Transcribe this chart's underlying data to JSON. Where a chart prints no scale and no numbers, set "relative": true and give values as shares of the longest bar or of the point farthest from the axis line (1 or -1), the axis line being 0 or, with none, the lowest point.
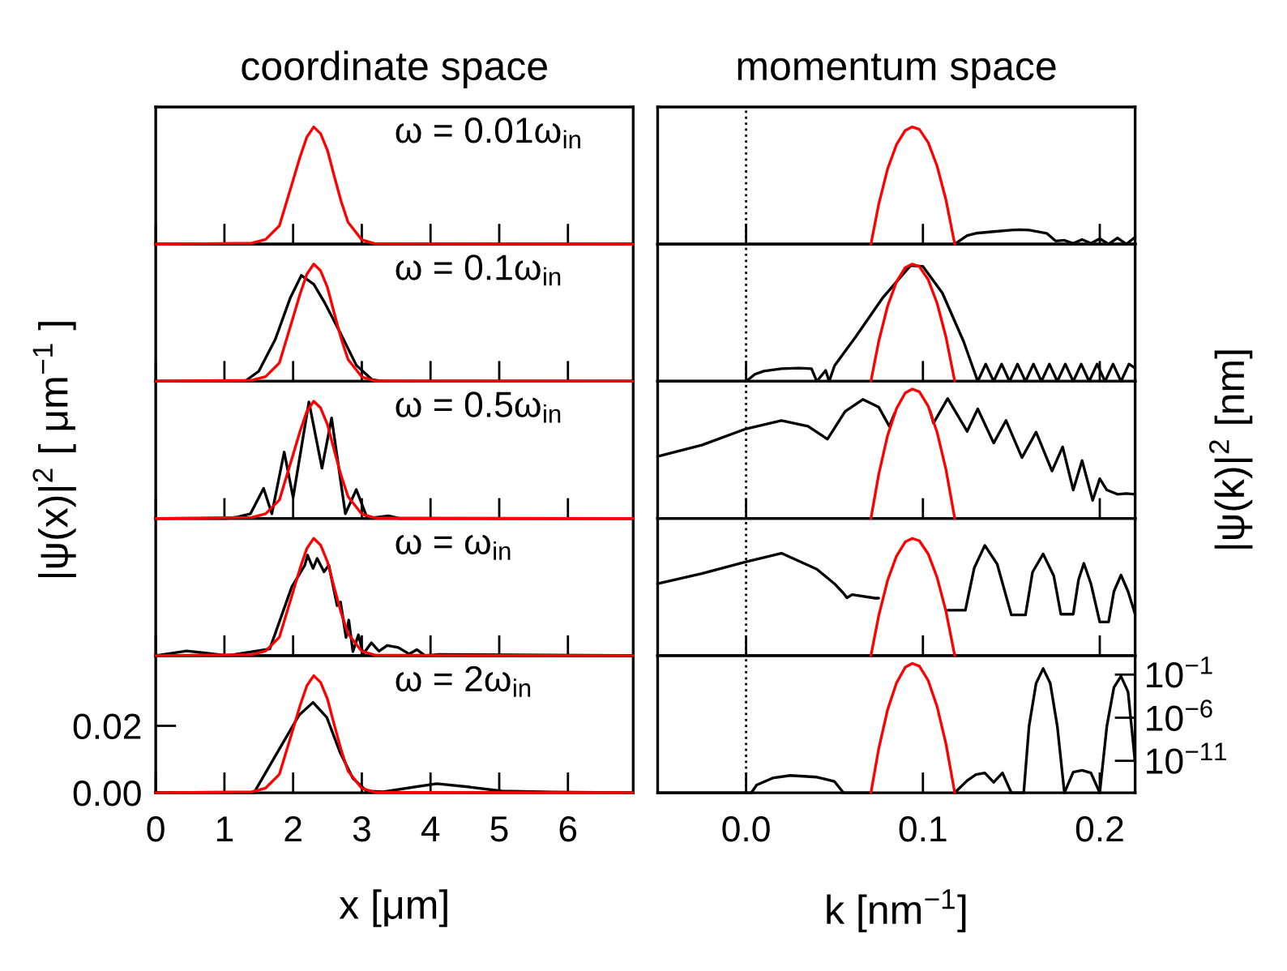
{
  "chart_data": [
    {
      "type": "line",
      "title": "coordinate space",
      "annotations": [
        "ω = 0.01ω$_{in}$"
      ],
      "relative": true,
      "xlim": [
        0,
        6.95
      ],
      "xticks": [
        0,
        1,
        2,
        3,
        4,
        5,
        6
      ],
      "tick_labels": false,
      "series": [
        {
          "color": "#ff0000",
          "x": [
            0,
            1.4,
            1.6,
            1.8,
            2.0,
            2.1,
            2.2,
            2.3,
            2.4,
            2.5,
            2.6,
            2.7,
            2.8,
            3.0,
            3.2,
            6.95
          ],
          "values": [
            0,
            0.0086,
            0.04,
            0.157,
            0.546,
            0.743,
            0.914,
            1,
            0.943,
            0.8,
            0.577,
            0.363,
            0.186,
            0.037,
            0.003,
            0
          ]
        }
      ]
    },
    {
      "type": "line",
      "title": "momentum space",
      "relative": true,
      "xlim": [
        -0.05,
        0.22
      ],
      "xticks": [
        0,
        0.1,
        0.2
      ],
      "tick_labels": false,
      "ref_lines": [
        {
          "axis": "x",
          "value": 0,
          "color": "#000000",
          "line_style": "dotted"
        }
      ],
      "series": [
        {
          "color": "#000000",
          "x": [
            0.118,
            0.125,
            0.13,
            0.14,
            0.15,
            0.155,
            0.16,
            0.17,
            0.175,
            0.18,
            0.185,
            0.19,
            0.195,
            0.2,
            0.205,
            0.21,
            0.215,
            0.22
          ],
          "values": [
            0,
            0.073,
            0.093,
            0.107,
            0.12,
            0.123,
            0.12,
            0.093,
            0.027,
            0.033,
            0.007,
            0.04,
            0.007,
            0.047,
            0,
            0.053,
            0,
            0.06
          ]
        },
        {
          "color": "#ff0000",
          "x": [
            0.0706,
            0.075,
            0.08,
            0.085,
            0.09,
            0.094,
            0.098,
            0.103,
            0.108,
            0.113,
            0.118
          ],
          "values": [
            0,
            0.34,
            0.64,
            0.847,
            0.97,
            1,
            0.979,
            0.867,
            0.667,
            0.38,
            0
          ]
        }
      ]
    },
    {
      "type": "line",
      "annotations": [
        "ω = 0.1ω$_{in}$"
      ],
      "relative": true,
      "xlim": [
        0,
        6.95
      ],
      "xticks": [
        0,
        1,
        2,
        3,
        4,
        5,
        6
      ],
      "tick_labels": false,
      "series": [
        {
          "color": "#000000",
          "x": [
            0,
            1.3,
            1.5,
            1.74,
            1.96,
            2.12,
            2.3,
            2.45,
            2.69,
            2.92,
            3.15,
            3.3,
            6.95
          ],
          "values": [
            0,
            0,
            0.086,
            0.357,
            0.714,
            0.903,
            0.829,
            0.68,
            0.409,
            0.137,
            0.014,
            0,
            0
          ]
        },
        {
          "color": "#ff0000",
          "x": [
            0,
            1.4,
            1.6,
            1.8,
            2.0,
            2.1,
            2.2,
            2.3,
            2.4,
            2.5,
            2.6,
            2.7,
            2.8,
            3.0,
            3.2,
            6.95
          ],
          "values": [
            0,
            0.0086,
            0.04,
            0.157,
            0.546,
            0.743,
            0.914,
            1,
            0.943,
            0.8,
            0.577,
            0.363,
            0.186,
            0.037,
            0.003,
            0
          ]
        }
      ]
    },
    {
      "type": "line",
      "relative": true,
      "xlim": [
        -0.05,
        0.22
      ],
      "xticks": [
        0,
        0.1,
        0.2
      ],
      "tick_labels": false,
      "ref_lines": [
        {
          "axis": "x",
          "value": 0,
          "color": "#000000",
          "line_style": "dotted"
        }
      ],
      "series": [
        {
          "color": "#000000",
          "x": [
            -0.05,
            0.0,
            0.005,
            0.01,
            0.02,
            0.03,
            0.037,
            0.04,
            0.045,
            0.047,
            0.05,
            0.062,
            0.077,
            0.093,
            0.1,
            0.111,
            0.123,
            0.131,
            0.1355,
            0.14,
            0.1445,
            0.149,
            0.1535,
            0.158,
            0.1625,
            0.167,
            0.1715,
            0.176,
            0.1805,
            0.185,
            0.1895,
            0.194,
            0.1985,
            0.203,
            0.2075,
            0.212,
            0.2165,
            0.22
          ],
          "values": [
            0,
            0,
            0.06,
            0.087,
            0.107,
            0.113,
            0.107,
            0,
            0.093,
            0,
            0.133,
            0.38,
            0.707,
            0.987,
            0.98,
            0.753,
            0.34,
            0,
            0.147,
            0,
            0.147,
            0,
            0.147,
            0,
            0.147,
            0,
            0.147,
            0,
            0.147,
            0,
            0.147,
            0,
            0.147,
            0,
            0.147,
            0,
            0.147,
            0.113
          ]
        },
        {
          "color": "#ff0000",
          "x": [
            0.0706,
            0.075,
            0.08,
            0.085,
            0.09,
            0.094,
            0.098,
            0.103,
            0.108,
            0.113,
            0.118
          ],
          "values": [
            0,
            0.34,
            0.64,
            0.847,
            0.97,
            1,
            0.979,
            0.867,
            0.667,
            0.38,
            0
          ]
        }
      ]
    },
    {
      "type": "line",
      "ylabel": "|ψ(x)|$^{2}$ [ μm$^{−1}$ ]",
      "annotations": [
        "ω = 0.5ω$_{in}$"
      ],
      "relative": true,
      "xlim": [
        0,
        6.95
      ],
      "xticks": [
        0,
        1,
        2,
        3,
        4,
        5,
        6
      ],
      "tick_labels": false,
      "series": [
        {
          "color": "#000000",
          "x": [
            0,
            1.04,
            1.2,
            1.38,
            1.57,
            1.69,
            1.87,
            2.0,
            2.23,
            2.42,
            2.56,
            2.76,
            2.92,
            3.08,
            3.39,
            3.55,
            6.95
          ],
          "values": [
            0,
            0,
            0.014,
            0.04,
            0.257,
            0.04,
            0.566,
            0.18,
            0.994,
            0.429,
            0.857,
            0.04,
            0.246,
            0,
            0.023,
            0,
            0
          ]
        },
        {
          "color": "#ff0000",
          "x": [
            0,
            1.4,
            1.6,
            1.8,
            2.0,
            2.1,
            2.2,
            2.3,
            2.4,
            2.5,
            2.6,
            2.7,
            2.8,
            3.0,
            3.2,
            6.95
          ],
          "values": [
            0,
            0.0086,
            0.04,
            0.157,
            0.546,
            0.743,
            0.914,
            1,
            0.943,
            0.8,
            0.577,
            0.363,
            0.186,
            0.037,
            0.003,
            0
          ]
        }
      ]
    },
    {
      "type": "line",
      "y2label": "|ψ(k)|$^{2}$ [nm]",
      "relative": true,
      "xlim": [
        -0.05,
        0.22
      ],
      "xticks": [
        0,
        0.1,
        0.2
      ],
      "tick_labels": false,
      "ref_lines": [
        {
          "axis": "x",
          "value": 0,
          "color": "#000000",
          "line_style": "dotted"
        }
      ],
      "series": [
        {
          "color": "#000000",
          "axis": "y2",
          "x": [
            -0.05,
            -0.025,
            0,
            0.02,
            0.035,
            0.046,
            0.056,
            0.066,
            0.075,
            0.081,
            0.084,
            0.094,
            0.104,
            0.106,
            0.114,
            0.125,
            0.131,
            0.14,
            0.147,
            0.156,
            0.164,
            0.173,
            0.179,
            0.185,
            0.19,
            0.196,
            0.2,
            0.204,
            0.21,
            0.215,
            0.22
          ],
          "values": [
            0.48,
            0.567,
            0.693,
            0.757,
            0.713,
            0.613,
            0.827,
            0.92,
            0.86,
            0.713,
            0.813,
            null,
            0.833,
            0.737,
            0.927,
            0.673,
            0.847,
            0.583,
            0.757,
            0.47,
            0.667,
            0.367,
            0.553,
            0.22,
            0.447,
            0.14,
            0.307,
            0.22,
            0.187,
            0.193,
            0.187
          ]
        },
        {
          "color": "#ff0000",
          "axis": "y2",
          "x": [
            0.0706,
            0.075,
            0.08,
            0.085,
            0.09,
            0.094,
            0.098,
            0.103,
            0.108,
            0.113,
            0.118
          ],
          "values": [
            0,
            0.34,
            0.64,
            0.847,
            0.97,
            1,
            0.979,
            0.867,
            0.667,
            0.38,
            0
          ]
        }
      ]
    },
    {
      "type": "line",
      "annotations": [
        "ω = ω$_{in}$"
      ],
      "relative": true,
      "xlim": [
        0,
        6.95
      ],
      "xticks": [
        0,
        1,
        2,
        3,
        4,
        5,
        6
      ],
      "tick_labels": false,
      "series": [
        {
          "color": "#000000",
          "x": [
            0,
            0.45,
            1.04,
            1.66,
            1.98,
            2.17,
            2.21,
            2.29,
            2.35,
            2.45,
            2.52,
            2.64,
            2.69,
            2.77,
            2.81,
            2.87,
            2.95,
            3.02,
            3.14,
            3.25,
            3.37,
            3.53,
            3.69,
            3.8,
            3.92,
            4.1,
            6.95
          ],
          "values": [
            0,
            0.04,
            0,
            0.057,
            0.586,
            0.771,
            0.857,
            0.743,
            0.829,
            0.714,
            0.771,
            0.426,
            0.457,
            0.154,
            0.303,
            0.034,
            0.177,
            0.014,
            0.109,
            0.037,
            0.086,
            0.069,
            0.014,
            0.051,
            0,
            0.009,
            0
          ]
        },
        {
          "color": "#ff0000",
          "x": [
            0,
            1.4,
            1.6,
            1.8,
            2.0,
            2.1,
            2.2,
            2.3,
            2.4,
            2.5,
            2.6,
            2.7,
            2.8,
            3.0,
            3.2,
            6.95
          ],
          "values": [
            0,
            0.0086,
            0.04,
            0.157,
            0.546,
            0.743,
            0.914,
            1,
            0.943,
            0.8,
            0.577,
            0.363,
            0.186,
            0.037,
            0.003,
            0
          ]
        }
      ]
    },
    {
      "type": "line",
      "relative": true,
      "xlim": [
        -0.05,
        0.22
      ],
      "xticks": [
        0,
        0.1,
        0.2
      ],
      "tick_labels": false,
      "ref_lines": [
        {
          "axis": "x",
          "value": 0,
          "color": "#000000",
          "line_style": "dotted"
        }
      ],
      "series": [
        {
          "color": "#000000",
          "x": [
            -0.05,
            -0.025,
            0,
            0.02,
            0.04,
            0.05,
            0.055,
            0.057,
            0.06,
            0.073,
            0.075,
            0.094,
            0.114,
            0.124,
            0.129,
            0.135,
            0.142,
            0.15,
            0.158,
            0.162,
            0.168,
            0.174,
            0.178,
            0.185,
            0.188,
            0.191,
            0.195,
            0.2,
            0.205,
            0.208,
            0.212,
            0.216,
            0.22
          ],
          "values": [
            0.613,
            0.7,
            0.8,
            0.873,
            0.737,
            0.613,
            0.533,
            0.493,
            0.52,
            0.49,
            0.49,
            null,
            0.387,
            0.387,
            0.747,
            0.94,
            0.78,
            0.347,
            0.347,
            0.713,
            0.867,
            0.68,
            0.353,
            0.353,
            0.647,
            0.787,
            0.613,
            0.287,
            0.287,
            0.547,
            0.687,
            0.547,
            0.353
          ]
        },
        {
          "color": "#ff0000",
          "x": [
            0.0706,
            0.075,
            0.08,
            0.085,
            0.09,
            0.094,
            0.098,
            0.103,
            0.108,
            0.113,
            0.118
          ],
          "values": [
            0,
            0.34,
            0.64,
            0.847,
            0.97,
            1,
            0.979,
            0.867,
            0.667,
            0.38,
            0
          ]
        }
      ]
    },
    {
      "type": "line",
      "xlabel": "x [μm]",
      "annotations": [
        "ω = 2ω$_{in}$"
      ],
      "xlim": [
        0,
        6.95
      ],
      "ylim": [
        0,
        0.041
      ],
      "xticks": [
        0,
        1,
        2,
        3,
        4,
        5,
        6
      ],
      "yticks": [
        {
          "value": 0,
          "label": "0.00"
        },
        {
          "value": 0.02,
          "label": "0.02"
        }
      ],
      "series": [
        {
          "color": "#000000",
          "x": [
            0,
            1.43,
            1.82,
            2.09,
            2.29,
            2.49,
            2.68,
            2.87,
            3.07,
            3.31,
            4.09,
            4.57,
            5.04,
            5.75,
            6.95
          ],
          "values": [
            0,
            0,
            0.0138,
            0.0233,
            0.027,
            0.0225,
            0.0122,
            0.0043,
            0.0005,
            0.0003,
            0.0027,
            0.0017,
            0.0005,
            0.0002,
            0
          ]
        },
        {
          "color": "#ff0000",
          "x": [
            0,
            1.4,
            1.6,
            1.8,
            2.0,
            2.1,
            2.2,
            2.3,
            2.4,
            2.5,
            2.6,
            2.7,
            2.8,
            3.0,
            3.2,
            6.95
          ],
          "values": [
            0,
            0.0003,
            0.0014,
            0.0055,
            0.0191,
            0.026,
            0.032,
            0.035,
            0.033,
            0.028,
            0.0202,
            0.0127,
            0.0065,
            0.0013,
            0.0001,
            0
          ]
        }
      ]
    },
    {
      "type": "line",
      "xlabel": "k [nm$^{−1}$]",
      "log": "y2",
      "xlim": [
        -0.05,
        0.22
      ],
      "y2lim": [
        2e-15,
        16
      ],
      "xticks": [
        {
          "value": 0,
          "label": "0.0"
        },
        {
          "value": 0.1,
          "label": "0.1"
        },
        {
          "value": 0.2,
          "label": "0.2"
        }
      ],
      "y2ticks": [
        {
          "value": 0.1,
          "label": "10$^{−1}$"
        },
        {
          "value": 1e-06,
          "label": "10$^{−6}$"
        },
        {
          "value": 1e-11,
          "label": "10$^{−11}$"
        }
      ],
      "ref_lines": [
        {
          "axis": "x",
          "value": 0,
          "color": "#000000",
          "line_style": "dotted"
        }
      ],
      "series": [
        {
          "color": "#000000",
          "axis": "y2",
          "x": [
            -0.05,
            0.003,
            0.006,
            0.015,
            0.025,
            0.04,
            0.05,
            0.055,
            0.07,
            0.094,
            0.118,
            0.125,
            0.13,
            0.135,
            0.14,
            0.145,
            0.15,
            0.157,
            0.16,
            0.164,
            0.168,
            0.172,
            0.176,
            0.18,
            0.185,
            0.19,
            0.195,
            0.2,
            0.204,
            0.208,
            0.212,
            0.216,
            0.22
          ],
          "values": [
            2e-15,
            2e-15,
            1.6e-14,
            1e-13,
            2e-13,
            1.3e-13,
            4e-14,
            2e-15,
            2e-15,
            null,
            2e-15,
            5e-14,
            2.5e-13,
            4e-13,
            3.2e-14,
            4e-13,
            2e-15,
            2e-15,
            1e-07,
            0.01,
            0.5,
            0.01,
            1e-07,
            2e-15,
            5e-13,
            8e-13,
            4e-13,
            2e-15,
            1e-07,
            0.0032,
            0.063,
            0.001,
            6.3e-12
          ]
        },
        {
          "color": "#ff0000",
          "axis": "y2",
          "x": [
            0.0706,
            0.075,
            0.08,
            0.085,
            0.09,
            0.094,
            0.098,
            0.103,
            0.108,
            0.113,
            0.118
          ],
          "values": [
            2e-15,
            2.5e-10,
            8e-06,
            0.01,
            0.7,
            2,
            0.95,
            0.02,
            2e-05,
            1e-09,
            2e-15
          ]
        }
      ]
    }
  ]
}
